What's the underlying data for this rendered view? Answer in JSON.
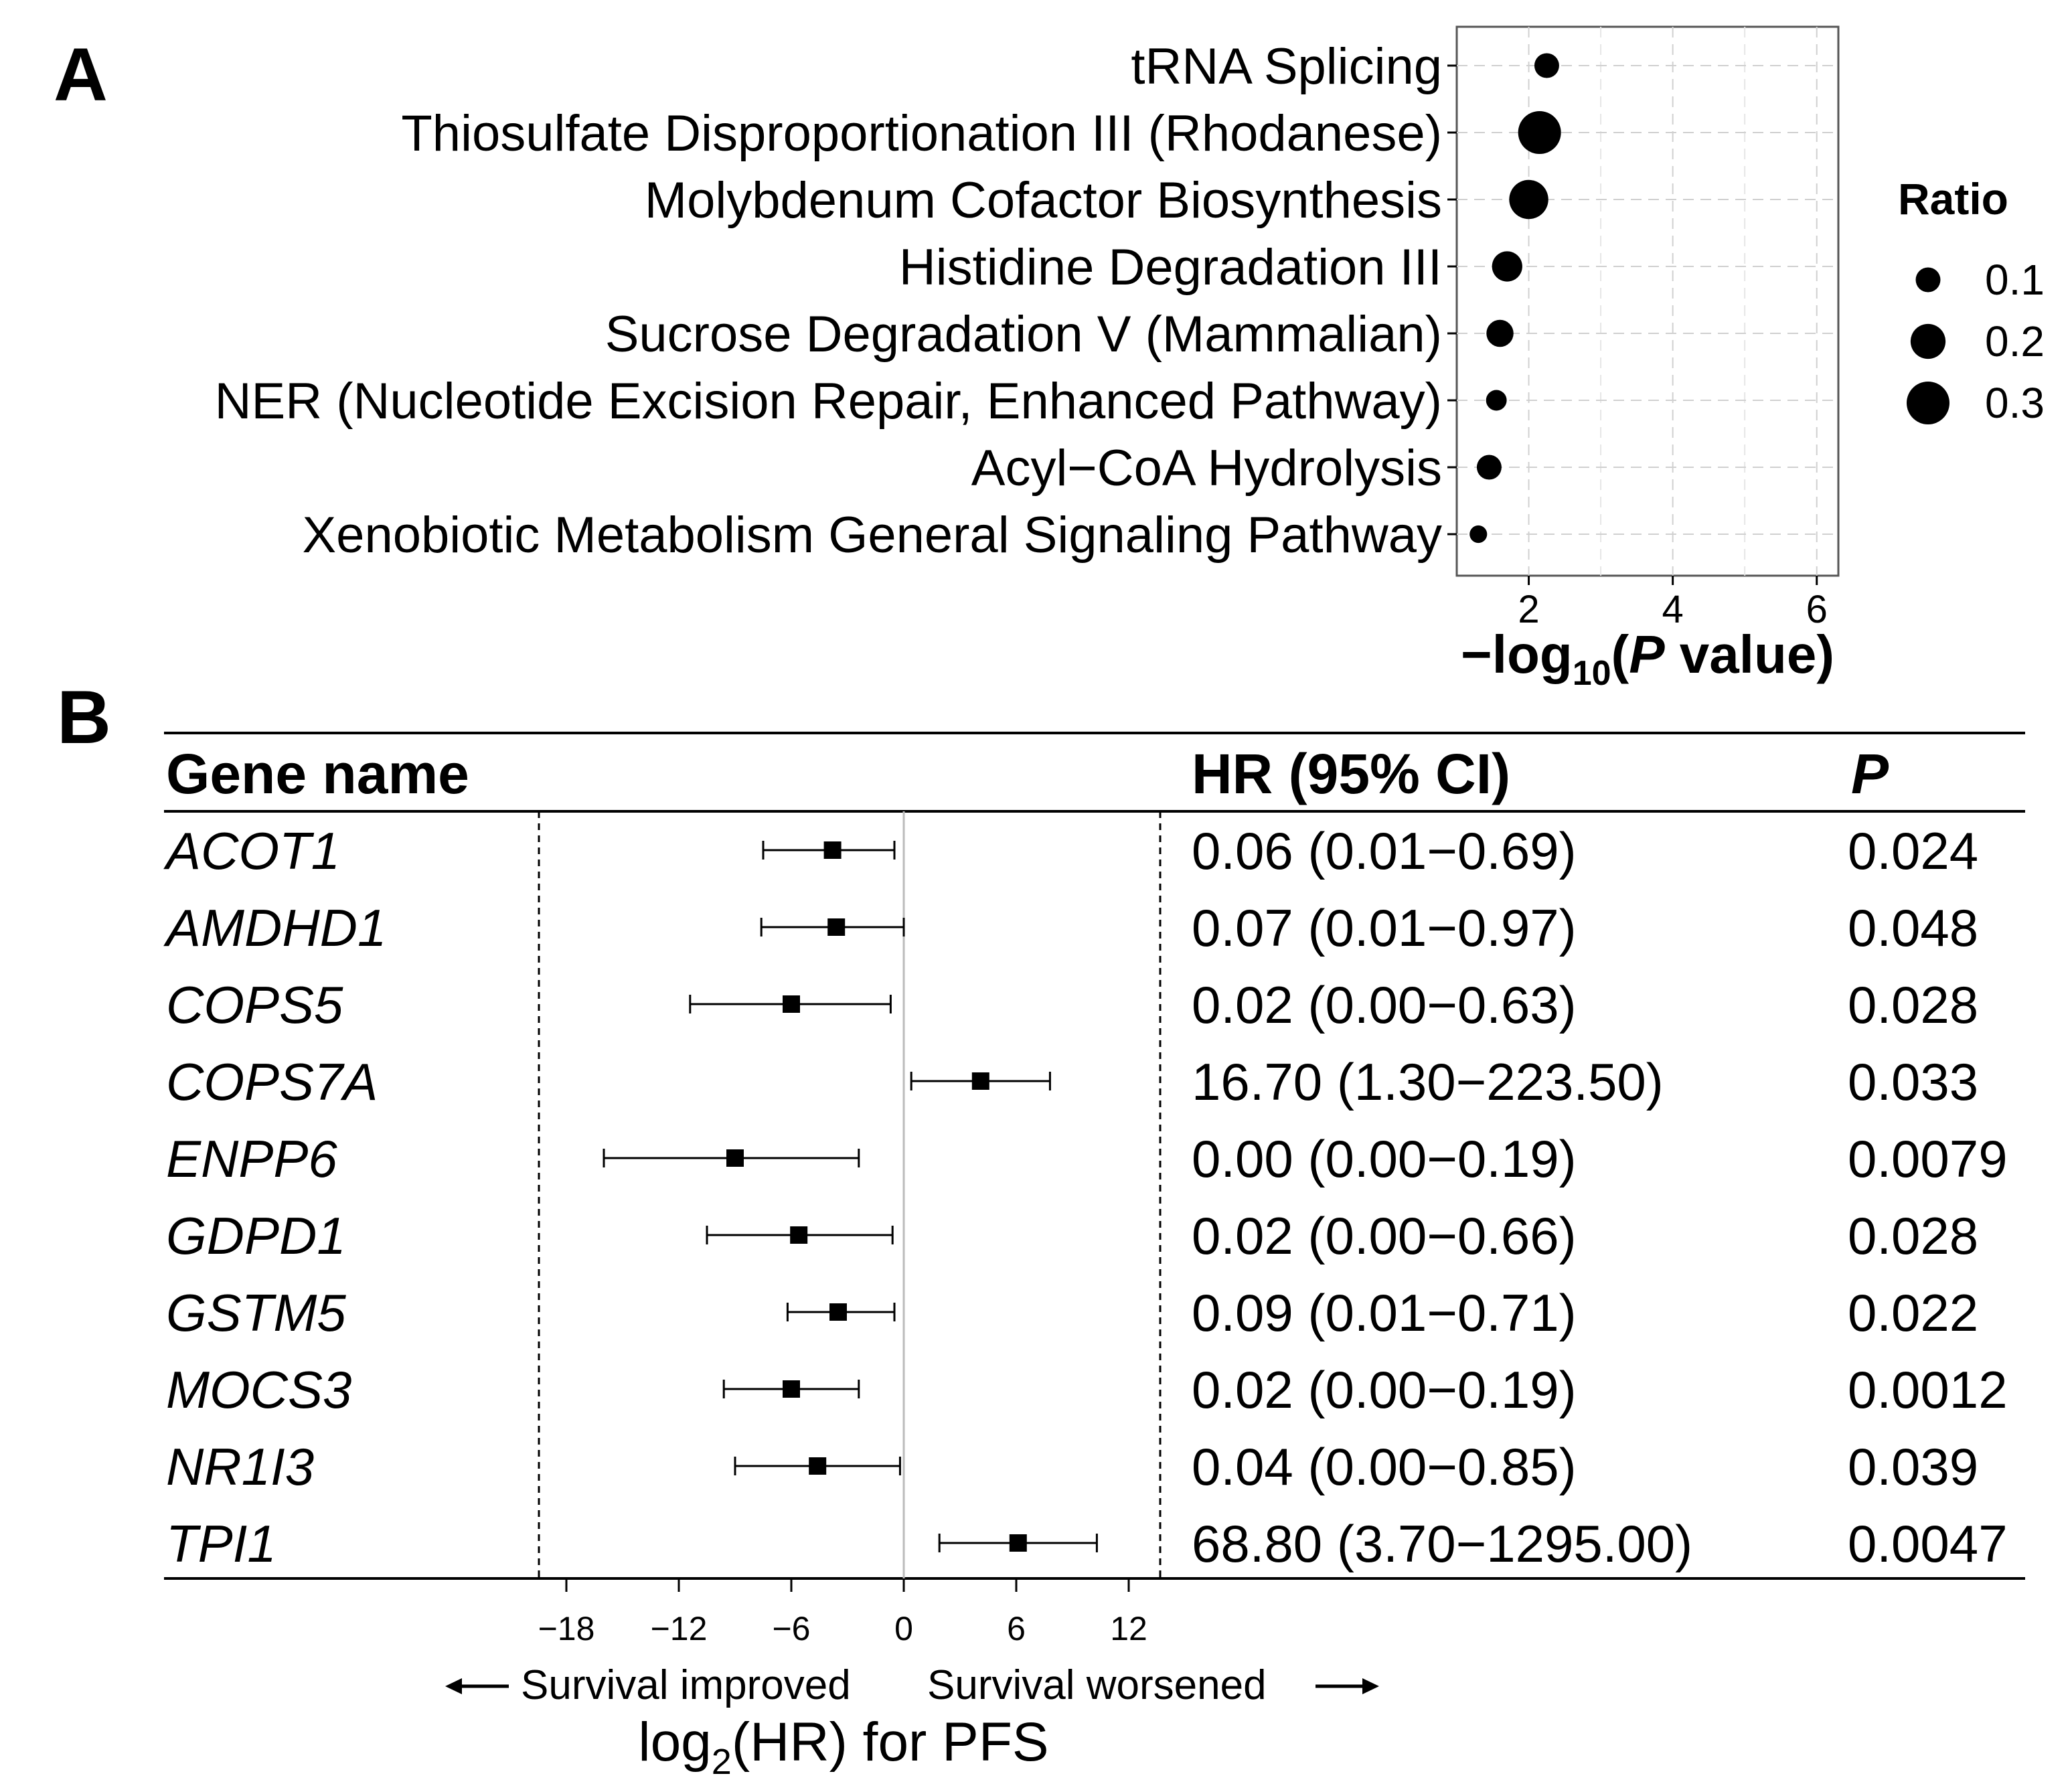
{
  "chart_data": [
    {
      "type": "scatter",
      "panel": "A",
      "subtype": "dot-plot",
      "categories": [
        "tRNA Splicing",
        "Thiosulfate Disproportionation III (Rhodanese)",
        "Molybdenum Cofactor Biosynthesis",
        "Histidine Degradation III",
        "Sucrose Degradation V (Mammalian)",
        "NER (Nucleotide Excision Repair, Enhanced Pathway)",
        "Acyl−CoA Hydrolysis",
        "Xenobiotic Metabolism General Signaling Pathway"
      ],
      "x": [
        2.25,
        2.15,
        2.0,
        1.7,
        1.6,
        1.55,
        1.45,
        1.3
      ],
      "ratio": [
        0.1,
        0.3,
        0.25,
        0.15,
        0.12,
        0.07,
        0.1,
        0.05
      ],
      "xlabel_parts": {
        "prefix": "−log",
        "sub": "10",
        "open": "(",
        "italic": "P",
        "suffix": " value)"
      },
      "xlim": [
        1.0,
        6.3
      ],
      "xticks": [
        2,
        4,
        6
      ],
      "grid": true,
      "legend": {
        "title": "Ratio",
        "position": "right",
        "entries": [
          {
            "label": "0.1",
            "value": 0.1
          },
          {
            "label": "0.2",
            "value": 0.2
          },
          {
            "label": "0.3",
            "value": 0.3
          }
        ]
      }
    },
    {
      "type": "table",
      "panel": "B",
      "subtype": "forest-plot",
      "headers": {
        "gene": "Gene name",
        "hr": "HR (95% CI)",
        "p": "P"
      },
      "rows": [
        {
          "gene": "ACOT1",
          "hr_text": "0.06 (0.01−0.69)",
          "p": "0.024",
          "log2hr": -3.8,
          "lo": -7.5,
          "hi": -0.5
        },
        {
          "gene": "AMDHD1",
          "hr_text": "0.07 (0.01−0.97)",
          "p": "0.048",
          "log2hr": -3.6,
          "lo": -7.6,
          "hi": 0.0
        },
        {
          "gene": "COPS5",
          "hr_text": "0.02 (0.00−0.63)",
          "p": "0.028",
          "log2hr": -6.0,
          "lo": -11.4,
          "hi": -0.7
        },
        {
          "gene": "COPS7A",
          "hr_text": "16.70 (1.30−223.50)",
          "p": "0.033",
          "log2hr": 4.1,
          "lo": 0.4,
          "hi": 7.8
        },
        {
          "gene": "ENPP6",
          "hr_text": "0.00 (0.00−0.19)",
          "p": "0.0079",
          "log2hr": -9.0,
          "lo": -16.0,
          "hi": -2.4
        },
        {
          "gene": "GDPD1",
          "hr_text": "0.02 (0.00−0.66)",
          "p": "0.028",
          "log2hr": -5.6,
          "lo": -10.5,
          "hi": -0.6
        },
        {
          "gene": "GSTM5",
          "hr_text": "0.09 (0.01−0.71)",
          "p": "0.022",
          "log2hr": -3.5,
          "lo": -6.2,
          "hi": -0.5
        },
        {
          "gene": "MOCS3",
          "hr_text": "0.02 (0.00−0.19)",
          "p": "0.0012",
          "log2hr": -6.0,
          "lo": -9.6,
          "hi": -2.4
        },
        {
          "gene": "NR1I3",
          "hr_text": "0.04 (0.00−0.85)",
          "p": "0.039",
          "log2hr": -4.6,
          "lo": -9.0,
          "hi": -0.2
        },
        {
          "gene": "TPI1",
          "hr_text": "68.80 (3.70−1295.00)",
          "p": "0.0047",
          "log2hr": 6.1,
          "lo": 1.9,
          "hi": 10.3
        }
      ],
      "xticks": [
        -18,
        -12,
        -6,
        0,
        6,
        12
      ],
      "xtick_labels": [
        "−18",
        "−12",
        "−6",
        "0",
        "6",
        "12"
      ],
      "xlim": [
        -20,
        14
      ],
      "left_direction": "Survival improved",
      "right_direction": "Survival worsened",
      "xlabel_parts": {
        "prefix": "log",
        "sub": "2",
        "suffix": "(HR) for PFS"
      }
    }
  ],
  "panel_labels": {
    "a": "A",
    "b": "B"
  }
}
